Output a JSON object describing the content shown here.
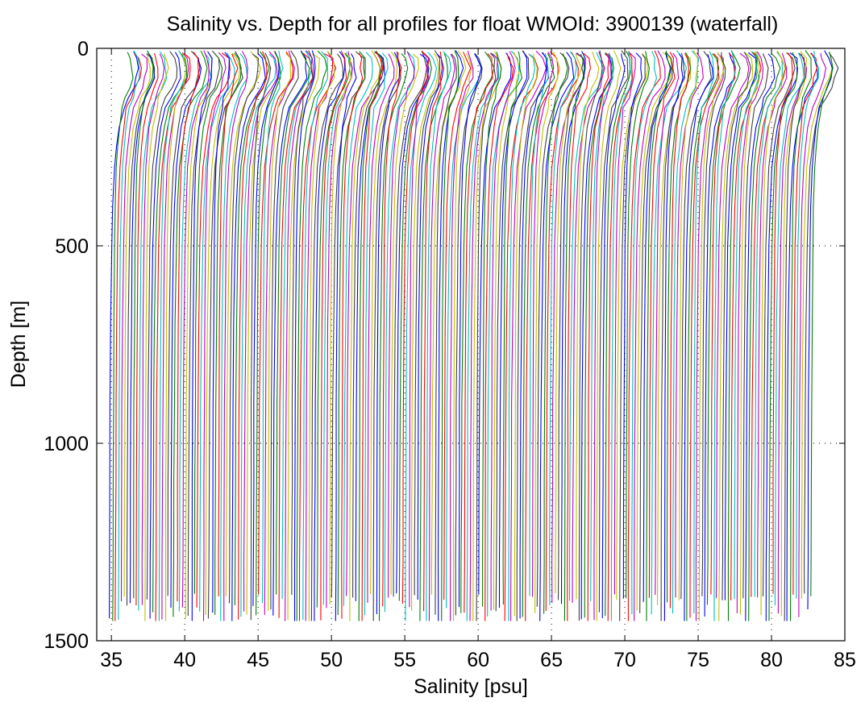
{
  "chart_data": {
    "type": "line",
    "title": "Salinity vs. Depth for all profiles for float WMOId: 3900139 (waterfall)",
    "xlabel": "Salinity [psu]",
    "ylabel": "Depth [m]",
    "xlim": [
      34,
      85
    ],
    "ylim": [
      0,
      1500
    ],
    "y_reversed": true,
    "grid": "dotted",
    "x_ticks": [
      35,
      40,
      45,
      50,
      55,
      60,
      65,
      70,
      75,
      80,
      85
    ],
    "y_ticks": [
      0,
      500,
      1000,
      1500
    ],
    "x_tick_labels": [
      "35",
      "40",
      "45",
      "50",
      "55",
      "60",
      "65",
      "70",
      "75",
      "80",
      "85"
    ],
    "y_tick_labels": [
      "0",
      "500",
      "1000",
      "1500"
    ],
    "waterfall": {
      "profile_count": 240,
      "first_offset": 35.0,
      "offset_step": 0.2,
      "profile_shape": {
        "depth": [
          5,
          25,
          50,
          75,
          100,
          125,
          150,
          200,
          250,
          300,
          400,
          500,
          700,
          900,
          1100,
          1300,
          1450
        ],
        "salinity_anomaly": [
          1.2,
          1.45,
          1.55,
          1.5,
          1.25,
          0.95,
          0.7,
          0.45,
          0.3,
          0.18,
          0.08,
          0.02,
          -0.04,
          -0.08,
          -0.1,
          -0.12,
          -0.13
        ]
      }
    },
    "series_colors": [
      "#0000ff",
      "#008000",
      "#ff0000",
      "#00bfbf",
      "#bf00bf",
      "#bfbf00",
      "#404040"
    ]
  }
}
